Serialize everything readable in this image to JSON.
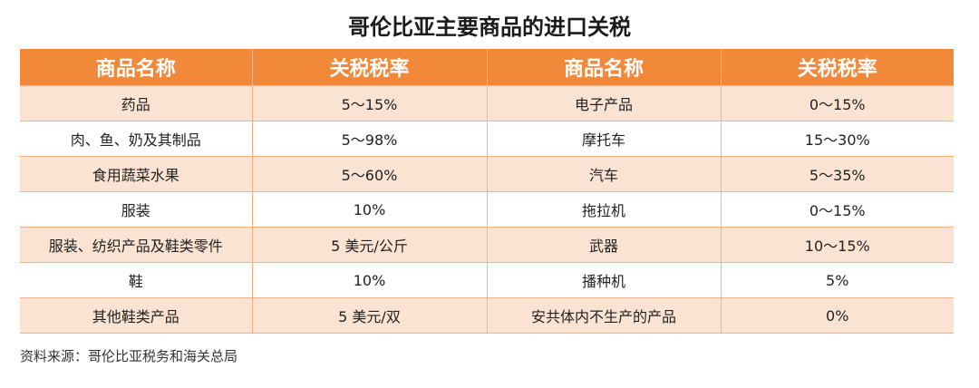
{
  "title": "哥伦比亚主要商品的进口关税",
  "table": {
    "headers": [
      "商品名称",
      "关税税率",
      "商品名称",
      "关税税率"
    ],
    "rows": [
      [
        "药品",
        "5～15%",
        "电子产品",
        "0～15%"
      ],
      [
        "肉、鱼、奶及其制品",
        "5～98%",
        "摩托车",
        "15～30%"
      ],
      [
        "食用蔬菜水果",
        "5～60%",
        "汽车",
        "5～35%"
      ],
      [
        "服装",
        "10%",
        "拖拉机",
        "0～15%"
      ],
      [
        "服装、纺织产品及鞋类零件",
        "5 美元/公斤",
        "武器",
        "10～15%"
      ],
      [
        "鞋",
        "10%",
        "播种机",
        "5%"
      ],
      [
        "其他鞋类产品",
        "5 美元/双",
        "安共体内不生产的产品",
        "0%"
      ]
    ]
  },
  "source": "资料来源：哥伦比亚税务和海关总局",
  "colors": {
    "header_bg": "#f2883a",
    "odd_row_bg": "#fbe3d3",
    "even_row_bg": "#ffffff"
  }
}
